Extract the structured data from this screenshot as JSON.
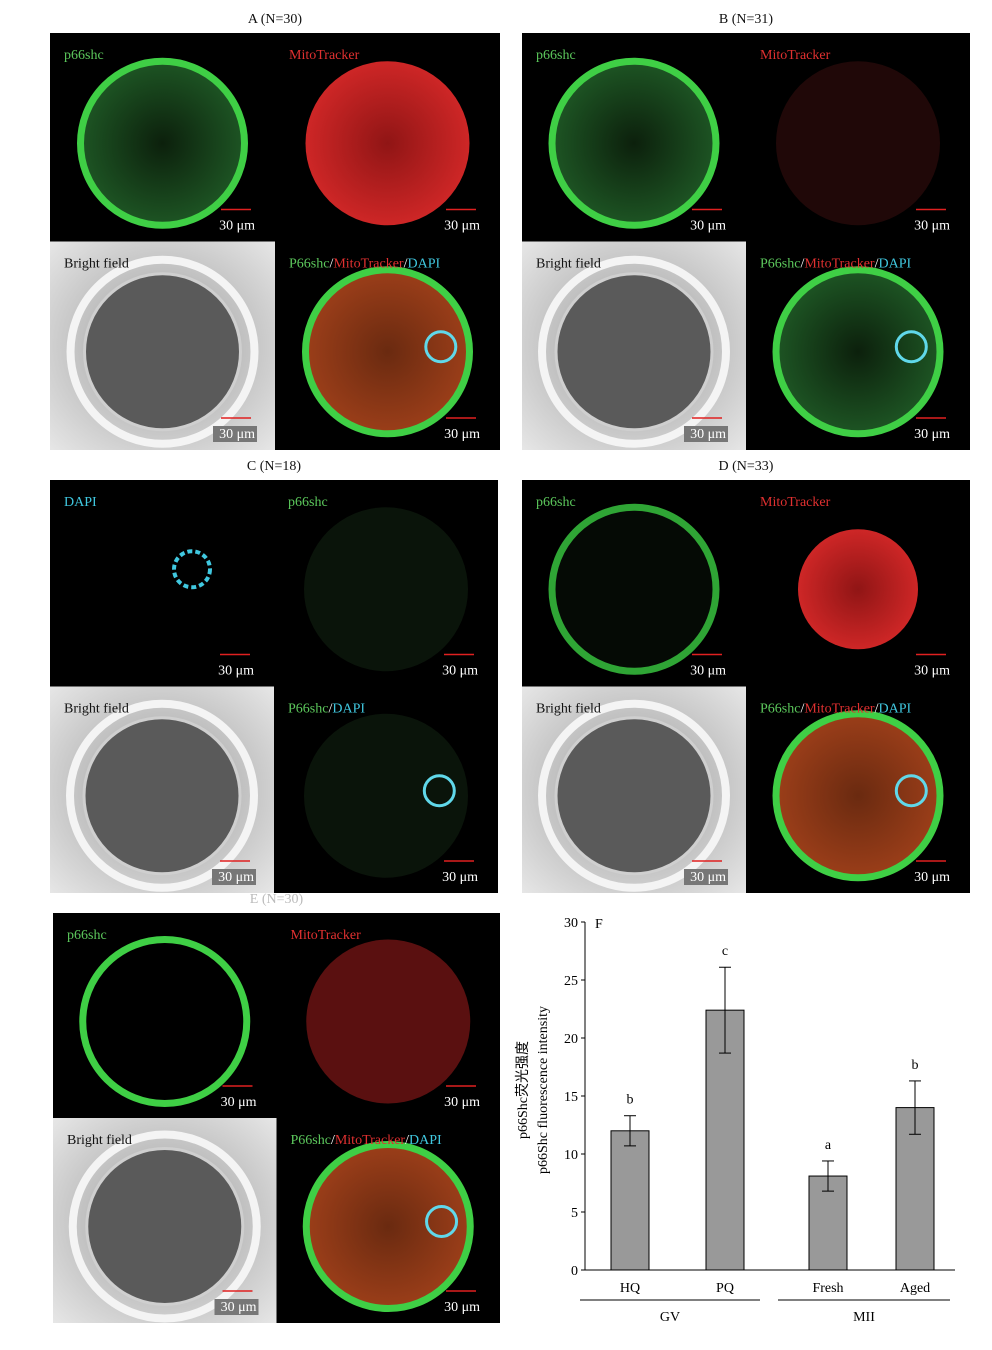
{
  "panels": [
    {
      "title": "A (N=30)",
      "quadrants": [
        {
          "label": [
            {
              "text": "p66shc",
              "color": "#5cc85c"
            }
          ],
          "scale": "30 μm"
        },
        {
          "label": [
            {
              "text": "MitoTracker",
              "color": "#e03030"
            }
          ],
          "scale": "30 μm"
        },
        {
          "label": [
            {
              "text": "Bright field",
              "color": "#111111"
            }
          ],
          "scale": "30 μm"
        },
        {
          "label": [
            {
              "text": "P66shc",
              "color": "#5cc85c"
            },
            {
              "text": "/",
              "color": "#ffffff"
            },
            {
              "text": "MitoTracker",
              "color": "#e03030"
            },
            {
              "text": "/",
              "color": "#ffffff"
            },
            {
              "text": "DAPI",
              "color": "#40c8e0"
            }
          ],
          "scale": "30 μm"
        }
      ]
    },
    {
      "title": "B (N=31)",
      "quadrants": [
        {
          "label": [
            {
              "text": "p66shc",
              "color": "#5cc85c"
            }
          ],
          "scale": "30 μm"
        },
        {
          "label": [
            {
              "text": "MitoTracker",
              "color": "#e03030"
            }
          ],
          "scale": "30 μm"
        },
        {
          "label": [
            {
              "text": "Bright field",
              "color": "#111111"
            }
          ],
          "scale": "30 μm"
        },
        {
          "label": [
            {
              "text": "P66shc",
              "color": "#5cc85c"
            },
            {
              "text": "/",
              "color": "#ffffff"
            },
            {
              "text": "MitoTracker",
              "color": "#e03030"
            },
            {
              "text": "/",
              "color": "#ffffff"
            },
            {
              "text": "DAPI",
              "color": "#40c8e0"
            }
          ],
          "scale": "30 μm"
        }
      ]
    },
    {
      "title": "C (N=18)",
      "quadrants": [
        {
          "label": [
            {
              "text": "DAPI",
              "color": "#40c8e0"
            }
          ],
          "scale": "30 μm"
        },
        {
          "label": [
            {
              "text": "p66shc",
              "color": "#5cc85c"
            }
          ],
          "scale": "30 μm"
        },
        {
          "label": [
            {
              "text": "Bright field",
              "color": "#111111"
            }
          ],
          "scale": "30 μm"
        },
        {
          "label": [
            {
              "text": "P66shc",
              "color": "#5cc85c"
            },
            {
              "text": "/",
              "color": "#ffffff"
            },
            {
              "text": "DAPI",
              "color": "#40c8e0"
            }
          ],
          "scale": "30 μm"
        }
      ]
    },
    {
      "title": "D (N=33)",
      "quadrants": [
        {
          "label": [
            {
              "text": "p66shc",
              "color": "#5cc85c"
            }
          ],
          "scale": "30 μm"
        },
        {
          "label": [
            {
              "text": "MitoTracker",
              "color": "#e03030"
            }
          ],
          "scale": "30 μm"
        },
        {
          "label": [
            {
              "text": "Bright field",
              "color": "#111111"
            }
          ],
          "scale": "30 μm"
        },
        {
          "label": [
            {
              "text": "P66shc",
              "color": "#5cc85c"
            },
            {
              "text": "/",
              "color": "#ffffff"
            },
            {
              "text": "MitoTracker",
              "color": "#e03030"
            },
            {
              "text": "/",
              "color": "#ffffff"
            },
            {
              "text": "DAPI",
              "color": "#40c8e0"
            }
          ],
          "scale": "30 μm"
        }
      ]
    },
    {
      "title": "E (N=30)",
      "quadrants": [
        {
          "label": [
            {
              "text": "p66shc",
              "color": "#5cc85c"
            }
          ],
          "scale": "30 μm"
        },
        {
          "label": [
            {
              "text": "MitoTracker",
              "color": "#e03030"
            }
          ],
          "scale": "30 μm"
        },
        {
          "label": [
            {
              "text": "Bright field",
              "color": "#111111"
            }
          ],
          "scale": "30 μm"
        },
        {
          "label": [
            {
              "text": "P66shc",
              "color": "#5cc85c"
            },
            {
              "text": "/",
              "color": "#ffffff"
            },
            {
              "text": "MitoTracker",
              "color": "#e03030"
            },
            {
              "text": "/",
              "color": "#ffffff"
            },
            {
              "text": "DAPI",
              "color": "#40c8e0"
            }
          ],
          "scale": "30 μm"
        }
      ]
    }
  ],
  "chart_data": {
    "type": "bar",
    "panel_label": "F",
    "y_label": [
      "p66Shc荧光强度",
      "p66Shc fluorescence intensity"
    ],
    "categories": [
      "HQ",
      "PQ",
      "Fresh",
      "Aged"
    ],
    "values": [
      12,
      22.4,
      8.1,
      14
    ],
    "errors": [
      1.3,
      3.7,
      1.3,
      2.3
    ],
    "letters": [
      "b",
      "c",
      "a",
      "b"
    ],
    "groups": [
      {
        "name": "GV",
        "members": [
          "HQ",
          "PQ"
        ]
      },
      {
        "name": "MII",
        "members": [
          "Fresh",
          "Aged"
        ]
      }
    ],
    "color": "#999999",
    "ylim": [
      0,
      30
    ],
    "yticks": [
      0,
      5,
      10,
      15,
      20,
      25,
      30
    ]
  }
}
